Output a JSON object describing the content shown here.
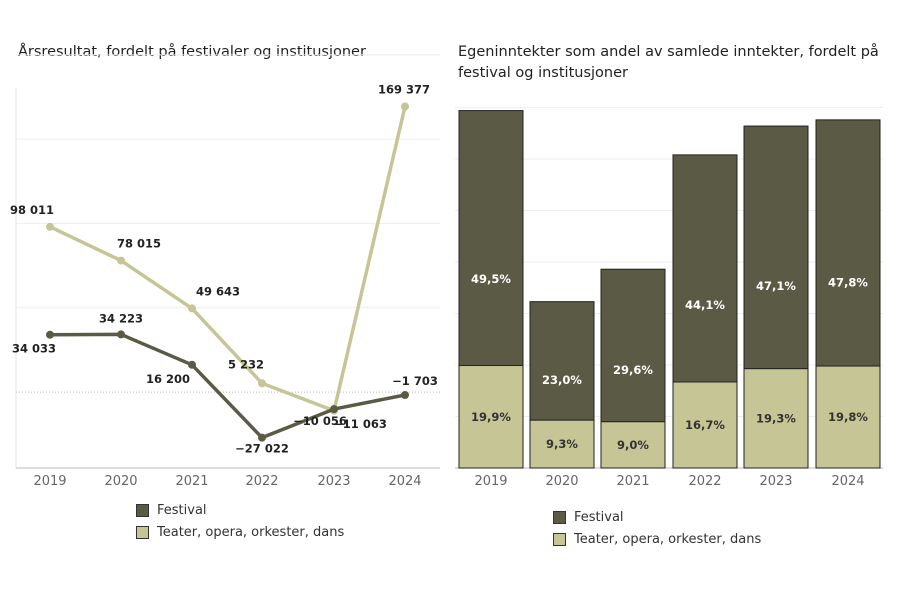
{
  "colors": {
    "festival": "#5b5a45",
    "teater": "#c6c596"
  },
  "legend": {
    "festival": "Festival",
    "teater": "Teater, opera, orkester, dans"
  },
  "chart_data": [
    {
      "type": "line",
      "title": "Årsresultat, fordelt på festivaler og institusjoner",
      "x": [
        "2019",
        "2020",
        "2021",
        "2022",
        "2023",
        "2024"
      ],
      "series": [
        {
          "name": "Festival",
          "values": [
            34033,
            34223,
            16200,
            -27022,
            -10056,
            -1703
          ],
          "labels": [
            "34 033",
            "34 223",
            "16 200",
            "−27 022",
            "−10 056",
            "−1 703"
          ]
        },
        {
          "name": "Teater, opera, orkester, dans",
          "values": [
            98011,
            78015,
            49643,
            5232,
            -11063,
            169377
          ],
          "labels": [
            "98 011",
            "78 015",
            "49 643",
            "5 232",
            "−11 063",
            "169 377"
          ]
        }
      ],
      "ylim": [
        -45000,
        210000
      ],
      "grid": true,
      "legend_position": "bottom"
    },
    {
      "type": "bar",
      "stacked": true,
      "title": "Egeninntekter som andel av samlede inntekter, fordelt på festival og institusjoner",
      "categories": [
        "2019",
        "2020",
        "2021",
        "2022",
        "2023",
        "2024"
      ],
      "series": [
        {
          "name": "Teater, opera, orkester, dans",
          "values": [
            19.9,
            9.3,
            9.0,
            16.7,
            19.3,
            19.8
          ],
          "labels": [
            "19,9%",
            "9,3%",
            "9,0%",
            "16,7%",
            "19,3%",
            "19,8%"
          ]
        },
        {
          "name": "Festival",
          "values": [
            49.5,
            23.0,
            29.6,
            44.1,
            47.1,
            47.8
          ],
          "labels": [
            "49,5%",
            "23,0%",
            "29,6%",
            "44,1%",
            "47,1%",
            "47,8%"
          ]
        }
      ],
      "ylim": [
        0,
        70
      ],
      "grid": true,
      "legend_position": "bottom"
    }
  ]
}
